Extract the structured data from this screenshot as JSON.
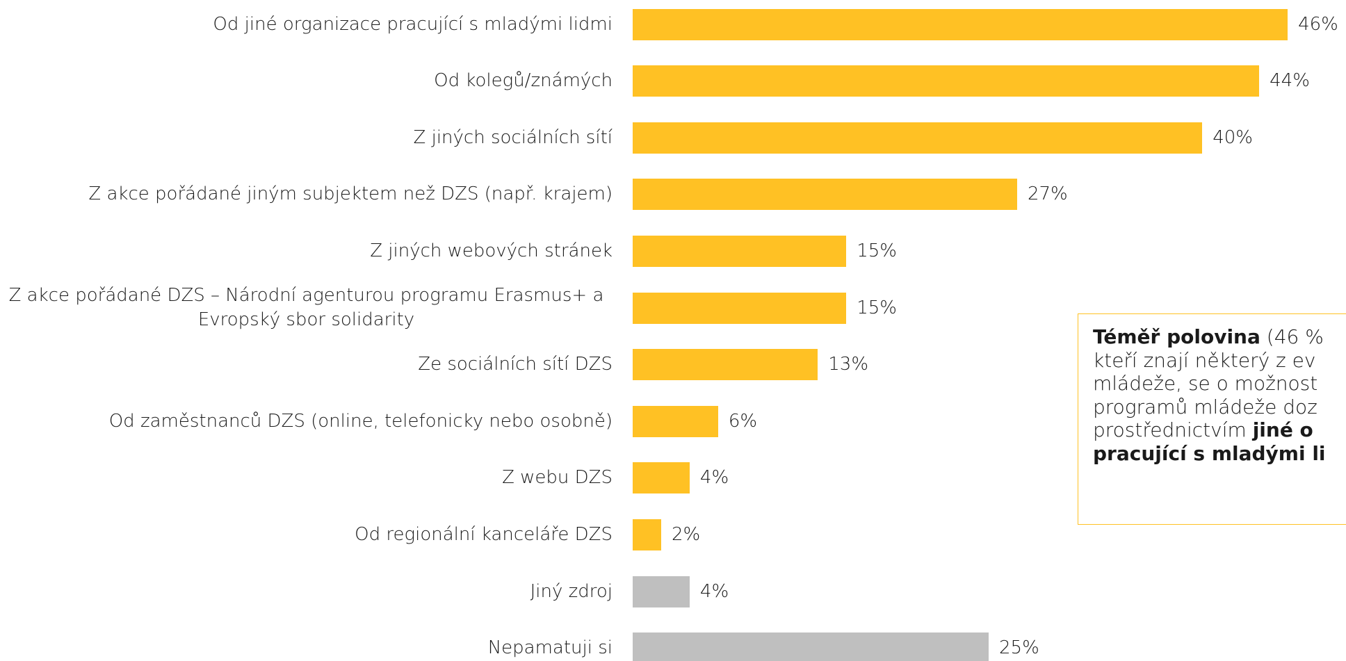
{
  "chart_data": {
    "type": "barh",
    "categories": [
      "Od jiné organizace pracující s mladými lidmi",
      "Od kolegů/známých",
      "Z jiných sociálních sítí",
      "Z akce pořádané jiným subjektem než DZS (např. krajem)",
      "Z jiných webových stránek",
      "Z akce pořádané DZS – Národní agenturou programu Erasmus+ a Evropský sbor solidarity",
      "Ze sociálních sítí DZS",
      "Od zaměstnanců DZS (online, telefonicky nebo osobně)",
      "Z webu DZS",
      "Od regionální kanceláře DZS",
      "Jiný zdroj",
      "Nepamatuji si"
    ],
    "values": [
      46,
      44,
      40,
      27,
      15,
      15,
      13,
      6,
      4,
      2,
      4,
      25
    ],
    "value_labels": [
      "46%",
      "44%",
      "40%",
      "27%",
      "15%",
      "15%",
      "13%",
      "6%",
      "4%",
      "2%",
      "4%",
      "25%"
    ],
    "colors": [
      "#FFC124",
      "#FFC124",
      "#FFC124",
      "#FFC124",
      "#FFC124",
      "#FFC124",
      "#FFC124",
      "#FFC124",
      "#FFC124",
      "#FFC124",
      "#BFBFBF",
      "#BFBFBF"
    ],
    "xlim": [
      0,
      50
    ]
  },
  "callout": {
    "lines": [
      [
        {
          "text": "Téměř polovina",
          "bold": true
        },
        {
          "text": " (46 %",
          "bold": false
        }
      ],
      [
        {
          "text": "kteří znají některý z ev",
          "bold": false
        }
      ],
      [
        {
          "text": "mládeže, se o možnost",
          "bold": false
        }
      ],
      [
        {
          "text": "programů mládeže doz",
          "bold": false
        }
      ],
      [
        {
          "text": "prostřednictvím ",
          "bold": false
        },
        {
          "text": "jiné o",
          "bold": true
        }
      ],
      [
        {
          "text": "pracující s mladými li",
          "bold": true
        }
      ]
    ]
  }
}
